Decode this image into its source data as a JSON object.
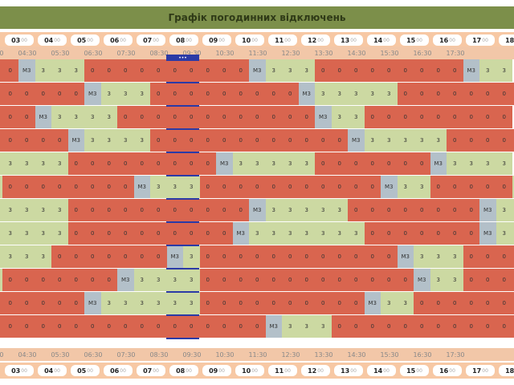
{
  "app": {
    "title": "Графік погодинних відключень"
  },
  "hours": [
    "03",
    "04",
    "05",
    "06",
    "07",
    "08",
    "09",
    "10",
    "11",
    "12",
    "13",
    "14",
    "15",
    "16",
    "17",
    "18"
  ],
  "minutes_suffix": "00",
  "half_hours": [
    "03:30",
    "04:30",
    "05:30",
    "06:30",
    "07:30",
    "08:30",
    "09:30",
    "10:30",
    "11:30",
    "12:30",
    "13:30",
    "14:30",
    "15:30",
    "16:30",
    "17:30"
  ],
  "current_marker": "•••",
  "legend": {
    "off": "0",
    "on": "3",
    "maybe": "М3"
  },
  "colors": {
    "off": "#d9654f",
    "on": "#ccd9a2",
    "maybe": "#b3c0c9",
    "header": "#7c8f4a",
    "time_bar": "#f7c8a4",
    "current": "#2b3aa6"
  },
  "rows": [
    "00M33330000000000M3333000000000M333",
    "000000M3333000000000M33333300000000",
    "000M33333000000000000M333000000000",
    "00000M33333000000000000M333333000000",
    "33333000000000M3333330000000M33333",
    "300000000M333300000000000M333000003",
    "3333300000000000M33333300000000M33333",
    "333330000000000M333333330000000M33333",
    "33330000000M33000000000000M333300000",
    "30000000M333330000000000000M3330000000",
    "000000M33333330000000000M3330000000",
    "00000000000000000M33330000000000000M3"
  ]
}
